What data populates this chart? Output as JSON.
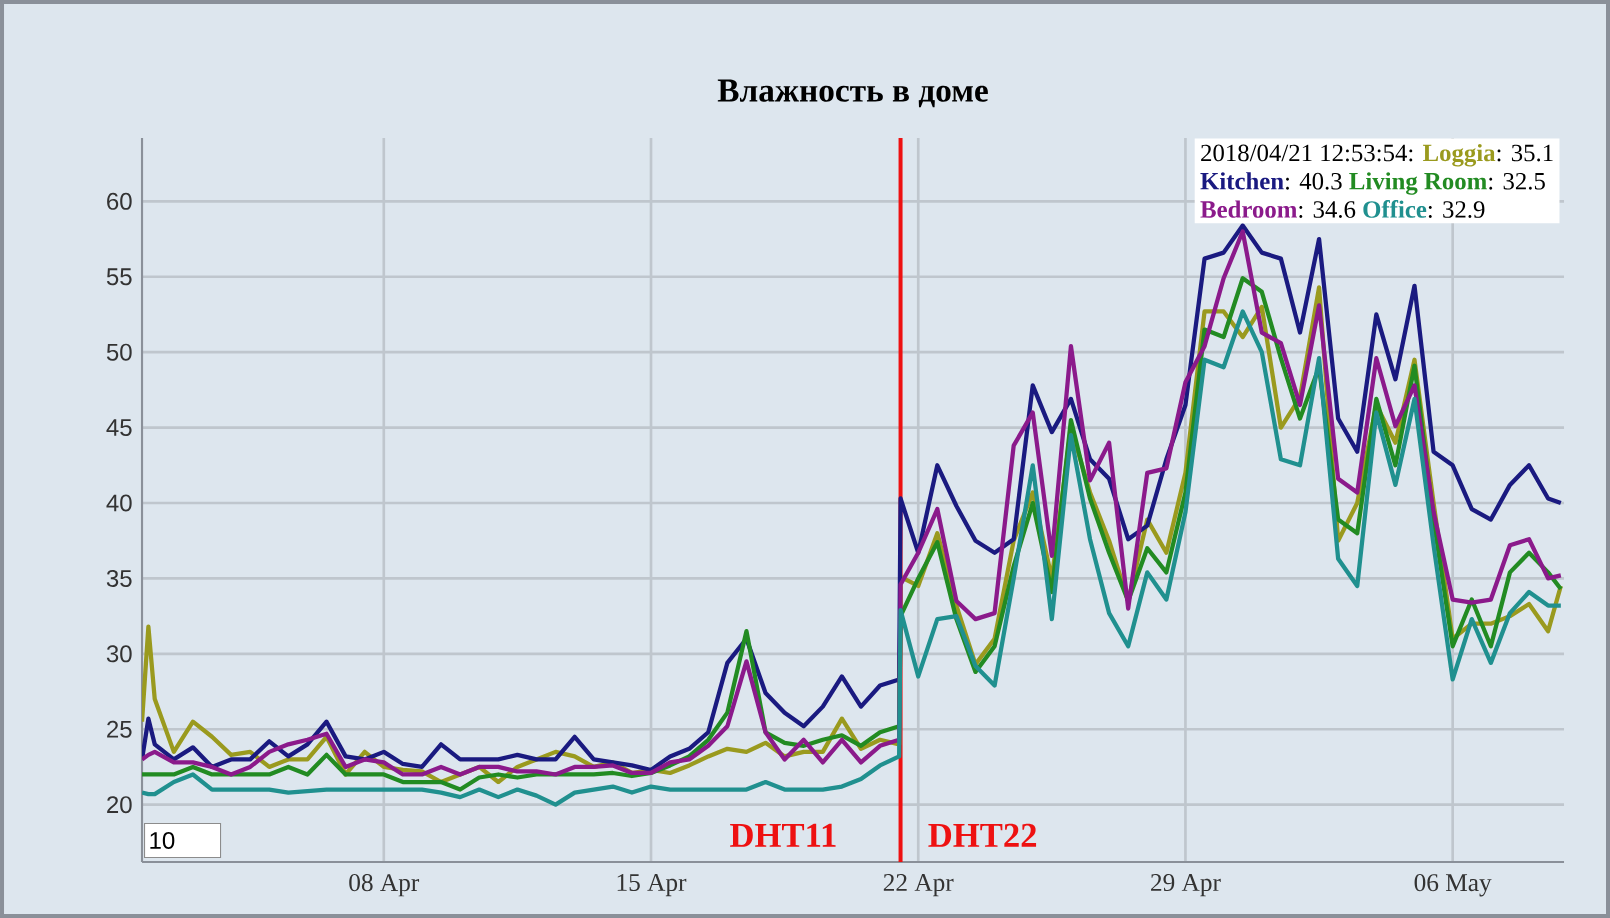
{
  "chart_data": {
    "type": "line",
    "title": "Влажность в доме",
    "x": [
      "2018-04-01T16:00",
      "2018-04-01T20:00",
      "2018-04-02T00:00",
      "2018-04-02T12:00",
      "2018-04-03T00:00",
      "2018-04-03T12:00",
      "2018-04-04T00:00",
      "2018-04-04T12:00",
      "2018-04-05T00:00",
      "2018-04-05T12:00",
      "2018-04-06T00:00",
      "2018-04-06T12:00",
      "2018-04-07T00:00",
      "2018-04-07T12:00",
      "2018-04-08T00:00",
      "2018-04-08T12:00",
      "2018-04-09T00:00",
      "2018-04-09T12:00",
      "2018-04-10T00:00",
      "2018-04-10T12:00",
      "2018-04-11T00:00",
      "2018-04-11T12:00",
      "2018-04-12T00:00",
      "2018-04-12T12:00",
      "2018-04-13T00:00",
      "2018-04-13T12:00",
      "2018-04-14T00:00",
      "2018-04-14T12:00",
      "2018-04-15T00:00",
      "2018-04-15T12:00",
      "2018-04-16T00:00",
      "2018-04-16T12:00",
      "2018-04-17T00:00",
      "2018-04-17T12:00",
      "2018-04-18T00:00",
      "2018-04-18T12:00",
      "2018-04-19T00:00",
      "2018-04-19T12:00",
      "2018-04-20T00:00",
      "2018-04-20T12:00",
      "2018-04-21T00:00",
      "2018-04-21T12:00",
      "2018-04-21T12:53",
      "2018-04-22T00:00",
      "2018-04-22T12:00",
      "2018-04-23T00:00",
      "2018-04-23T12:00",
      "2018-04-24T00:00",
      "2018-04-24T12:00",
      "2018-04-25T00:00",
      "2018-04-25T12:00",
      "2018-04-26T00:00",
      "2018-04-26T12:00",
      "2018-04-27T00:00",
      "2018-04-27T12:00",
      "2018-04-28T00:00",
      "2018-04-28T12:00",
      "2018-04-29T00:00",
      "2018-04-29T12:00",
      "2018-04-30T00:00",
      "2018-04-30T12:00",
      "2018-05-01T00:00",
      "2018-05-01T12:00",
      "2018-05-02T00:00",
      "2018-05-02T12:00",
      "2018-05-03T00:00",
      "2018-05-03T12:00",
      "2018-05-04T00:00",
      "2018-05-04T12:00",
      "2018-05-05T00:00",
      "2018-05-05T12:00",
      "2018-05-06T00:00",
      "2018-05-06T12:00",
      "2018-05-07T00:00",
      "2018-05-07T12:00",
      "2018-05-08T00:00",
      "2018-05-08T12:00",
      "2018-05-08T20:00"
    ],
    "series": [
      {
        "name": "Loggia",
        "color": "#9a9a1e",
        "values": [
          25.5,
          31.8,
          27,
          23.5,
          25.5,
          24.5,
          23.3,
          23.5,
          22.5,
          23,
          23,
          24.5,
          22,
          23.5,
          22.5,
          22.3,
          22.2,
          21.5,
          22,
          22.5,
          21.5,
          22.5,
          23,
          23.5,
          23.2,
          22.5,
          22.8,
          22.1,
          22.3,
          22.1,
          22.6,
          23.2,
          23.7,
          23.5,
          24.1,
          23.2,
          23.5,
          23.5,
          25.7,
          23.7,
          24.3,
          24,
          35.1,
          34.5,
          38,
          33.2,
          29.3,
          31,
          37.5,
          40.7,
          35,
          45,
          40.7,
          37.5,
          33.5,
          38.9,
          36.7,
          42,
          52.7,
          52.7,
          51,
          53,
          45,
          47,
          54.3,
          37.5,
          40,
          46.5,
          44,
          49.5,
          40,
          31,
          32,
          32,
          32.5,
          33.3,
          31.5,
          34.5
        ]
      },
      {
        "name": "Kitchen",
        "color": "#1a1a80",
        "values": [
          23,
          25.7,
          24,
          23,
          23.8,
          22.5,
          23,
          23,
          24.2,
          23.2,
          24,
          25.5,
          23.2,
          23,
          23.5,
          22.7,
          22.5,
          24,
          23,
          23,
          23,
          23.3,
          23,
          23,
          24.5,
          23,
          22.8,
          22.6,
          22.3,
          23.2,
          23.7,
          24.8,
          29.4,
          31,
          27.4,
          26.1,
          25.2,
          26.5,
          28.5,
          26.5,
          27.9,
          28.3,
          40.3,
          36.7,
          42.5,
          39.8,
          37.5,
          36.7,
          37.6,
          47.8,
          44.7,
          46.9,
          42.9,
          41.6,
          37.6,
          38.5,
          42.9,
          46.5,
          56.2,
          56.6,
          58.4,
          56.6,
          56.2,
          51.3,
          57.5,
          45.6,
          43.4,
          52.5,
          48.2,
          54.4,
          43.4,
          42.5,
          39.6,
          38.9,
          41.2,
          42.5,
          40.3,
          40
        ]
      },
      {
        "name": "Living Room",
        "color": "#228b22",
        "values": [
          22,
          22,
          22,
          22,
          22.5,
          22,
          22,
          22,
          22,
          22.5,
          22,
          23.3,
          22,
          22,
          22,
          21.5,
          21.5,
          21.5,
          21,
          21.8,
          22,
          21.8,
          22,
          22,
          22,
          22,
          22.1,
          21.9,
          22.1,
          22.6,
          23.2,
          24.3,
          26.1,
          31.5,
          24.8,
          24.1,
          23.9,
          24.3,
          24.6,
          23.9,
          24.8,
          25.2,
          32.5,
          35,
          37.4,
          32.3,
          28.8,
          30.5,
          35.8,
          40,
          34.1,
          45.5,
          40.3,
          36.7,
          33.5,
          37,
          35.4,
          40.7,
          51.5,
          51,
          54.9,
          54,
          49.6,
          45.6,
          49,
          38.9,
          38,
          46.9,
          42.5,
          49.1,
          38.9,
          30.5,
          33.6,
          30.5,
          35.4,
          36.7,
          35.4,
          34.3
        ]
      },
      {
        "name": "Bedroom",
        "color": "#8b1a8b",
        "values": [
          23,
          23.3,
          23.5,
          22.8,
          22.8,
          22.5,
          22,
          22.5,
          23.5,
          24,
          24.3,
          24.7,
          22.5,
          23,
          22.8,
          22,
          22,
          22.5,
          22,
          22.5,
          22.5,
          22.2,
          22.2,
          22,
          22.5,
          22.5,
          22.6,
          22.1,
          22.1,
          22.8,
          23,
          23.9,
          25.2,
          29.5,
          24.8,
          23,
          24.3,
          22.8,
          24.3,
          22.8,
          23.9,
          24.3,
          34.6,
          36.7,
          39.6,
          33.5,
          32.3,
          32.7,
          43.8,
          46,
          36.5,
          50.4,
          41.5,
          44,
          33,
          42,
          42.3,
          48,
          50.4,
          54.9,
          58,
          51.3,
          50.6,
          46.5,
          53.1,
          41.6,
          40.7,
          49.6,
          45.1,
          47.8,
          39.4,
          33.6,
          33.4,
          33.6,
          37.2,
          37.6,
          35,
          35.2
        ]
      },
      {
        "name": "Office",
        "color": "#20908f",
        "values": [
          20.8,
          20.7,
          20.7,
          21.5,
          22,
          21,
          21,
          21,
          21,
          20.8,
          20.9,
          21,
          21,
          21,
          21,
          21,
          21,
          20.8,
          20.5,
          21,
          20.5,
          21,
          20.6,
          20,
          20.8,
          21,
          21.2,
          20.8,
          21.2,
          21,
          21,
          21,
          21,
          21,
          21.5,
          21,
          21,
          21,
          21.2,
          21.7,
          22.6,
          23.2,
          32.9,
          28.5,
          32.3,
          32.5,
          29.2,
          27.9,
          35,
          42.5,
          32.3,
          44.5,
          37.6,
          32.7,
          30.5,
          35.4,
          33.6,
          39.4,
          49.5,
          49,
          52.7,
          50,
          42.9,
          42.5,
          49.6,
          36.3,
          34.5,
          46,
          41.2,
          46.9,
          37.2,
          28.3,
          32.3,
          29.4,
          32.7,
          34.1,
          33.2,
          33.2
        ]
      }
    ],
    "xlim": [
      "2018-04-01T16:00",
      "2018-05-08T22:00"
    ],
    "xticks": [
      {
        "value": "2018-04-08",
        "label": "08 Apr"
      },
      {
        "value": "2018-04-15",
        "label": "15 Apr"
      },
      {
        "value": "2018-04-22",
        "label": "22 Apr"
      },
      {
        "value": "2018-04-29",
        "label": "29 Apr"
      },
      {
        "value": "2018-05-06",
        "label": "06 May"
      }
    ],
    "ylim": [
      16.2,
      64.2
    ],
    "yticks": [
      20,
      25,
      30,
      35,
      40,
      45,
      50,
      55,
      60
    ],
    "grid": true,
    "legend": "top right",
    "ref_lines": [
      {
        "axis": "x",
        "value": "2018-04-21T12:53",
        "color": "#ee1111"
      }
    ],
    "annotations": [
      "2018/04/21 12:53:54:",
      "10",
      "DHT11",
      "DHT22",
      ": 35.1",
      ": 40.3",
      ": 32.5",
      ": 34.6",
      ": 32.9"
    ]
  }
}
